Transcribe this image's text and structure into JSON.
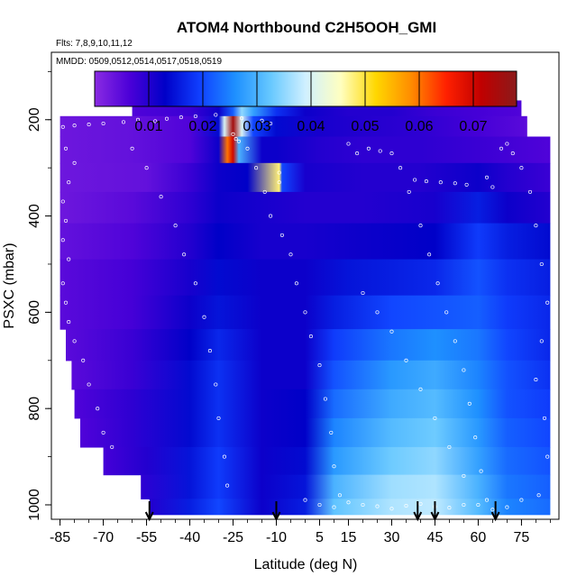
{
  "chart_data": {
    "type": "heatmap",
    "title": "ATOM4 Northbound C2H5OOH_GMI",
    "flights_label": "Flts: 7,8,9,10,11,12",
    "dates_label": "MMDD: 0509,0512,0514,0517,0518,0519",
    "xlabel": "Latitude (deg N)",
    "ylabel": "PSXC (mbar)",
    "xlim": [
      -88,
      88
    ],
    "ylim": [
      1030,
      60
    ],
    "x_ticks": [
      -85,
      -70,
      -55,
      -40,
      -25,
      -10,
      5,
      15,
      30,
      45,
      60,
      75
    ],
    "y_ticks": [
      200,
      400,
      600,
      800,
      1000
    ],
    "colorbar": {
      "min": 0.0,
      "max": 0.078,
      "ticks": [
        0.01,
        0.02,
        0.03,
        0.04,
        0.05,
        0.06,
        0.07
      ],
      "tick_labels": [
        "0.01",
        "0.02",
        "0.03",
        "0.04",
        "0.05",
        "0.06",
        "0.07"
      ],
      "colors": [
        "#8a2be2",
        "#4b00d8",
        "#0000c8",
        "#1040ff",
        "#1e90ff",
        "#66c8ff",
        "#d0f0ff",
        "#ffffc0",
        "#ffd700",
        "#ff8c00",
        "#ff2000",
        "#c00000",
        "#8b1a1a"
      ]
    },
    "layers": [
      {
        "p": 175,
        "x0": -60,
        "x1": 75,
        "points": [
          [
            -60,
            0.006
          ],
          [
            -40,
            0.008
          ],
          [
            -30,
            0.012
          ],
          [
            -25,
            0.022
          ],
          [
            -22,
            0.035
          ],
          [
            -18,
            0.028
          ],
          [
            -10,
            0.018
          ],
          [
            0,
            0.012
          ],
          [
            15,
            0.01
          ],
          [
            30,
            0.01
          ],
          [
            45,
            0.008
          ],
          [
            60,
            0.007
          ],
          [
            75,
            0.006
          ]
        ]
      },
      {
        "p": 210,
        "x0": -85,
        "x1": 77,
        "points": [
          [
            -85,
            0.003
          ],
          [
            -60,
            0.004
          ],
          [
            -40,
            0.006
          ],
          [
            -30,
            0.014
          ],
          [
            -28,
            0.04
          ],
          [
            -25,
            0.075
          ],
          [
            -22,
            0.04
          ],
          [
            -18,
            0.02
          ],
          [
            -10,
            0.014
          ],
          [
            5,
            0.011
          ],
          [
            20,
            0.01
          ],
          [
            40,
            0.009
          ],
          [
            60,
            0.007
          ],
          [
            77,
            0.005
          ]
        ]
      },
      {
        "p": 260,
        "x0": -85,
        "x1": 85,
        "points": [
          [
            -85,
            0.003
          ],
          [
            -60,
            0.004
          ],
          [
            -40,
            0.006
          ],
          [
            -30,
            0.012
          ],
          [
            -27,
            0.06
          ],
          [
            -25,
            0.07
          ],
          [
            -23,
            0.03
          ],
          [
            -15,
            0.012
          ],
          [
            -10,
            0.012
          ],
          [
            5,
            0.01
          ],
          [
            20,
            0.009
          ],
          [
            40,
            0.009
          ],
          [
            60,
            0.008
          ],
          [
            85,
            0.006
          ]
        ]
      },
      {
        "p": 320,
        "x0": -85,
        "x1": 85,
        "points": [
          [
            -85,
            0.003
          ],
          [
            -55,
            0.004
          ],
          [
            -40,
            0.008
          ],
          [
            -30,
            0.012
          ],
          [
            -20,
            0.013
          ],
          [
            -9,
            0.048
          ],
          [
            -8,
            0.02
          ],
          [
            0,
            0.011
          ],
          [
            20,
            0.01
          ],
          [
            40,
            0.01
          ],
          [
            60,
            0.012
          ],
          [
            70,
            0.01
          ],
          [
            85,
            0.008
          ]
        ]
      },
      {
        "p": 380,
        "x0": -85,
        "x1": 85,
        "points": [
          [
            -85,
            0.003
          ],
          [
            -60,
            0.005
          ],
          [
            -40,
            0.009
          ],
          [
            -30,
            0.012
          ],
          [
            -15,
            0.011
          ],
          [
            0,
            0.01
          ],
          [
            20,
            0.01
          ],
          [
            45,
            0.011
          ],
          [
            60,
            0.016
          ],
          [
            70,
            0.012
          ],
          [
            85,
            0.01
          ]
        ]
      },
      {
        "p": 450,
        "x0": -85,
        "x1": 85,
        "points": [
          [
            -85,
            0.004
          ],
          [
            -60,
            0.006
          ],
          [
            -40,
            0.01
          ],
          [
            -30,
            0.013
          ],
          [
            -15,
            0.011
          ],
          [
            0,
            0.011
          ],
          [
            20,
            0.012
          ],
          [
            45,
            0.013
          ],
          [
            60,
            0.019
          ],
          [
            70,
            0.016
          ],
          [
            85,
            0.014
          ]
        ]
      },
      {
        "p": 530,
        "x0": -85,
        "x1": 85,
        "points": [
          [
            -85,
            0.005
          ],
          [
            -60,
            0.007
          ],
          [
            -40,
            0.011
          ],
          [
            -30,
            0.014
          ],
          [
            -15,
            0.012
          ],
          [
            0,
            0.012
          ],
          [
            15,
            0.015
          ],
          [
            30,
            0.016
          ],
          [
            45,
            0.017
          ],
          [
            60,
            0.021
          ],
          [
            70,
            0.018
          ],
          [
            85,
            0.016
          ]
        ]
      },
      {
        "p": 600,
        "x0": -85,
        "x1": 85,
        "points": [
          [
            -85,
            0.005
          ],
          [
            -60,
            0.007
          ],
          [
            -40,
            0.012
          ],
          [
            -30,
            0.015
          ],
          [
            -15,
            0.012
          ],
          [
            0,
            0.012
          ],
          [
            10,
            0.016
          ],
          [
            30,
            0.02
          ],
          [
            45,
            0.021
          ],
          [
            60,
            0.022
          ],
          [
            70,
            0.019
          ],
          [
            85,
            0.017
          ]
        ]
      },
      {
        "p": 670,
        "x0": -83,
        "x1": 85,
        "points": [
          [
            -83,
            0.005
          ],
          [
            -60,
            0.008
          ],
          [
            -40,
            0.013
          ],
          [
            -30,
            0.017
          ],
          [
            -15,
            0.012
          ],
          [
            0,
            0.012
          ],
          [
            10,
            0.019
          ],
          [
            30,
            0.024
          ],
          [
            45,
            0.026
          ],
          [
            60,
            0.024
          ],
          [
            70,
            0.02
          ],
          [
            85,
            0.017
          ]
        ]
      },
      {
        "p": 730,
        "x0": -81,
        "x1": 85,
        "points": [
          [
            -81,
            0.005
          ],
          [
            -60,
            0.008
          ],
          [
            -40,
            0.014
          ],
          [
            -30,
            0.018
          ],
          [
            -15,
            0.012
          ],
          [
            0,
            0.012
          ],
          [
            10,
            0.021
          ],
          [
            30,
            0.027
          ],
          [
            45,
            0.029
          ],
          [
            60,
            0.025
          ],
          [
            70,
            0.021
          ],
          [
            85,
            0.018
          ]
        ]
      },
      {
        "p": 790,
        "x0": -80,
        "x1": 85,
        "points": [
          [
            -80,
            0.006
          ],
          [
            -60,
            0.009
          ],
          [
            -40,
            0.014
          ],
          [
            -30,
            0.018
          ],
          [
            -15,
            0.012
          ],
          [
            0,
            0.013
          ],
          [
            10,
            0.023
          ],
          [
            30,
            0.029
          ],
          [
            45,
            0.031
          ],
          [
            60,
            0.026
          ],
          [
            70,
            0.021
          ],
          [
            85,
            0.019
          ]
        ]
      },
      {
        "p": 850,
        "x0": -78,
        "x1": 85,
        "points": [
          [
            -78,
            0.006
          ],
          [
            -60,
            0.009
          ],
          [
            -40,
            0.014
          ],
          [
            -30,
            0.018
          ],
          [
            -15,
            0.012
          ],
          [
            0,
            0.013
          ],
          [
            10,
            0.025
          ],
          [
            30,
            0.031
          ],
          [
            45,
            0.033
          ],
          [
            60,
            0.027
          ],
          [
            70,
            0.022
          ],
          [
            85,
            0.02
          ]
        ]
      },
      {
        "p": 910,
        "x0": -70,
        "x1": 85,
        "points": [
          [
            -70,
            0.007
          ],
          [
            -55,
            0.01
          ],
          [
            -40,
            0.015
          ],
          [
            -30,
            0.019
          ],
          [
            -15,
            0.012
          ],
          [
            0,
            0.014
          ],
          [
            10,
            0.027
          ],
          [
            30,
            0.033
          ],
          [
            45,
            0.035
          ],
          [
            60,
            0.028
          ],
          [
            70,
            0.023
          ],
          [
            85,
            0.021
          ]
        ]
      },
      {
        "p": 965,
        "x0": -57,
        "x1": 85,
        "points": [
          [
            -57,
            0.009
          ],
          [
            -40,
            0.015
          ],
          [
            -30,
            0.019
          ],
          [
            -15,
            0.012
          ],
          [
            0,
            0.015
          ],
          [
            10,
            0.03
          ],
          [
            30,
            0.036
          ],
          [
            45,
            0.037
          ],
          [
            60,
            0.03
          ],
          [
            70,
            0.024
          ],
          [
            85,
            0.022
          ]
        ]
      },
      {
        "p": 1010,
        "x0": -54,
        "x1": 85,
        "points": [
          [
            -54,
            0.01
          ],
          [
            -40,
            0.016
          ],
          [
            -30,
            0.02
          ],
          [
            -15,
            0.012
          ],
          [
            0,
            0.016
          ],
          [
            10,
            0.032
          ],
          [
            30,
            0.037
          ],
          [
            45,
            0.038
          ],
          [
            60,
            0.031
          ],
          [
            70,
            0.025
          ],
          [
            85,
            0.023
          ]
        ]
      }
    ],
    "sample_points": [
      [
        -84,
        215
      ],
      [
        -80,
        212
      ],
      [
        -75,
        210
      ],
      [
        -70,
        208
      ],
      [
        -63,
        205
      ],
      [
        -58,
        200
      ],
      [
        -52,
        203
      ],
      [
        -48,
        198
      ],
      [
        -43,
        195
      ],
      [
        -38,
        193
      ],
      [
        -31,
        190
      ],
      [
        -22,
        197
      ],
      [
        -15,
        202
      ],
      [
        -12,
        208
      ],
      [
        -83,
        260
      ],
      [
        -80,
        290
      ],
      [
        -82,
        330
      ],
      [
        -84,
        370
      ],
      [
        -83,
        410
      ],
      [
        -84,
        450
      ],
      [
        -82,
        490
      ],
      [
        -84,
        540
      ],
      [
        -83,
        580
      ],
      [
        -82,
        620
      ],
      [
        -80,
        660
      ],
      [
        -77,
        700
      ],
      [
        -75,
        750
      ],
      [
        -72,
        800
      ],
      [
        -70,
        850
      ],
      [
        -67,
        880
      ],
      [
        -60,
        260
      ],
      [
        -55,
        300
      ],
      [
        -50,
        360
      ],
      [
        -45,
        420
      ],
      [
        -42,
        480
      ],
      [
        -38,
        540
      ],
      [
        -35,
        610
      ],
      [
        -33,
        680
      ],
      [
        -31,
        750
      ],
      [
        -30,
        820
      ],
      [
        -28,
        900
      ],
      [
        -27,
        960
      ],
      [
        -20,
        260
      ],
      [
        -17,
        300
      ],
      [
        -14,
        350
      ],
      [
        -12,
        400
      ],
      [
        -8,
        440
      ],
      [
        -5,
        480
      ],
      [
        -3,
        540
      ],
      [
        0,
        600
      ],
      [
        2,
        650
      ],
      [
        5,
        710
      ],
      [
        7,
        780
      ],
      [
        9,
        850
      ],
      [
        10,
        920
      ],
      [
        12,
        980
      ],
      [
        15,
        250
      ],
      [
        18,
        270
      ],
      [
        22,
        260
      ],
      [
        26,
        265
      ],
      [
        30,
        270
      ],
      [
        33,
        300
      ],
      [
        36,
        350
      ],
      [
        40,
        420
      ],
      [
        43,
        480
      ],
      [
        46,
        540
      ],
      [
        49,
        600
      ],
      [
        52,
        660
      ],
      [
        55,
        720
      ],
      [
        57,
        790
      ],
      [
        59,
        860
      ],
      [
        61,
        930
      ],
      [
        63,
        990
      ],
      [
        63,
        320
      ],
      [
        65,
        340
      ],
      [
        68,
        260
      ],
      [
        70,
        250
      ],
      [
        72,
        270
      ],
      [
        75,
        300
      ],
      [
        78,
        350
      ],
      [
        80,
        420
      ],
      [
        82,
        500
      ],
      [
        84,
        580
      ],
      [
        82,
        660
      ],
      [
        80,
        740
      ],
      [
        83,
        820
      ],
      [
        84,
        900
      ],
      [
        81,
        980
      ],
      [
        20,
        560
      ],
      [
        25,
        600
      ],
      [
        30,
        640
      ],
      [
        35,
        700
      ],
      [
        40,
        760
      ],
      [
        45,
        820
      ],
      [
        50,
        880
      ],
      [
        55,
        940
      ],
      [
        60,
        1000
      ],
      [
        65,
        1010
      ],
      [
        70,
        1005
      ],
      [
        75,
        990
      ],
      [
        -25,
        230
      ],
      [
        -24,
        240
      ],
      [
        -23,
        245
      ],
      [
        -9,
        310
      ],
      [
        -9,
        330
      ],
      [
        38,
        325
      ],
      [
        42,
        328
      ],
      [
        47,
        330
      ],
      [
        52,
        332
      ],
      [
        56,
        335
      ],
      [
        0,
        990
      ],
      [
        5,
        1000
      ],
      [
        10,
        1005
      ],
      [
        15,
        995
      ],
      [
        20,
        1000
      ],
      [
        25,
        1003
      ],
      [
        30,
        1008
      ],
      [
        35,
        1002
      ],
      [
        40,
        998
      ],
      [
        45,
        1004
      ],
      [
        50,
        1006
      ],
      [
        55,
        1000
      ]
    ],
    "flight_arrows": [
      -54,
      -10,
      39,
      45,
      66
    ]
  }
}
